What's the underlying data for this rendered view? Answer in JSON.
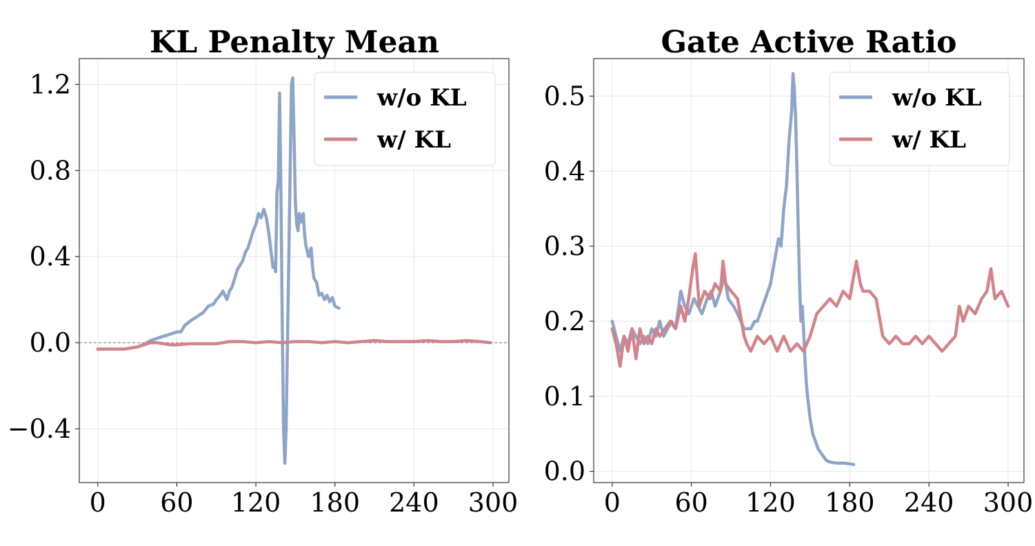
{
  "colors": {
    "wo_kl": "#8ea4c8",
    "w_kl": "#d2848a",
    "grid": "#e6e6e6",
    "axis": "#333333",
    "zero_line": "#777777"
  },
  "chart_data": [
    {
      "type": "line",
      "title": "KL Penalty Mean",
      "xlabel": "",
      "ylabel": "",
      "xlim": [
        -14,
        312
      ],
      "ylim": [
        -0.65,
        1.32
      ],
      "xticks": [
        0,
        60,
        120,
        180,
        240,
        300
      ],
      "xtick_labels": [
        "0",
        "60",
        "120",
        "180",
        "240",
        "300"
      ],
      "yticks": [
        -0.4,
        0.0,
        0.4,
        0.8,
        1.2
      ],
      "ytick_labels": [
        "−0.4",
        "0.0",
        "0.4",
        "0.8",
        "1.2"
      ],
      "grid": true,
      "zero_reference_line": true,
      "legend": {
        "position": "top-right",
        "entries": [
          "w/o KL",
          "w/ KL"
        ]
      },
      "series": [
        {
          "name": "w/o KL",
          "color_key": "wo_kl",
          "x": [
            0,
            10,
            20,
            30,
            36,
            40,
            45,
            50,
            55,
            60,
            63,
            66,
            70,
            75,
            80,
            84,
            88,
            90,
            93,
            95,
            98,
            100,
            102,
            104,
            106,
            108,
            110,
            112,
            114,
            116,
            118,
            120,
            122,
            124,
            126,
            128,
            130,
            132,
            133,
            134,
            135,
            136,
            137,
            138,
            139,
            140,
            141,
            142,
            143,
            144,
            145,
            146,
            147,
            148,
            149,
            150,
            151,
            152,
            153,
            154,
            155,
            156,
            157,
            158,
            160,
            162,
            163,
            164,
            166,
            168,
            170,
            172,
            174,
            176,
            178,
            180,
            183
          ],
          "y": [
            -0.03,
            -0.03,
            -0.03,
            -0.02,
            -0.005,
            0.01,
            0.02,
            0.03,
            0.04,
            0.05,
            0.05,
            0.08,
            0.1,
            0.12,
            0.14,
            0.17,
            0.18,
            0.2,
            0.22,
            0.24,
            0.2,
            0.24,
            0.26,
            0.3,
            0.34,
            0.36,
            0.38,
            0.42,
            0.44,
            0.48,
            0.52,
            0.55,
            0.6,
            0.58,
            0.62,
            0.58,
            0.5,
            0.4,
            0.35,
            0.37,
            0.33,
            0.7,
            0.75,
            1.16,
            0.7,
            0.1,
            -0.4,
            -0.56,
            -0.4,
            0.0,
            0.4,
            0.8,
            1.2,
            1.23,
            0.95,
            0.65,
            0.55,
            0.52,
            0.6,
            0.56,
            0.58,
            0.6,
            0.5,
            0.45,
            0.4,
            0.44,
            0.35,
            0.3,
            0.28,
            0.22,
            0.23,
            0.2,
            0.22,
            0.19,
            0.21,
            0.17,
            0.16
          ]
        },
        {
          "name": "w/ KL",
          "color_key": "w_kl",
          "x": [
            0,
            10,
            20,
            30,
            35,
            40,
            45,
            50,
            55,
            60,
            70,
            80,
            90,
            100,
            110,
            120,
            130,
            140,
            150,
            160,
            170,
            180,
            190,
            200,
            210,
            220,
            230,
            240,
            250,
            260,
            270,
            280,
            290,
            298
          ],
          "y": [
            -0.03,
            -0.03,
            -0.03,
            -0.02,
            -0.01,
            0.0,
            0.0,
            -0.005,
            -0.01,
            -0.01,
            -0.005,
            -0.005,
            -0.005,
            0.005,
            0.005,
            0.0,
            0.005,
            0.0,
            0.005,
            0.005,
            0.0,
            0.005,
            0.0,
            0.005,
            0.01,
            0.005,
            0.005,
            0.005,
            0.01,
            0.005,
            0.005,
            0.01,
            0.005,
            0.0
          ]
        }
      ]
    },
    {
      "type": "line",
      "title": "Gate Active Ratio",
      "xlabel": "",
      "ylabel": "",
      "xlim": [
        -14,
        312
      ],
      "ylim": [
        -0.015,
        0.55
      ],
      "xticks": [
        0,
        60,
        120,
        180,
        240,
        300
      ],
      "xtick_labels": [
        "0",
        "60",
        "120",
        "180",
        "240",
        "300"
      ],
      "yticks": [
        0.0,
        0.1,
        0.2,
        0.3,
        0.4,
        0.5
      ],
      "ytick_labels": [
        "0.0",
        "0.1",
        "0.2",
        "0.3",
        "0.4",
        "0.5"
      ],
      "grid": true,
      "zero_reference_line": false,
      "legend": {
        "position": "top-right",
        "entries": [
          "w/o KL",
          "w/ KL"
        ]
      },
      "series": [
        {
          "name": "w/o KL",
          "color_key": "wo_kl",
          "x": [
            0,
            3,
            6,
            9,
            12,
            15,
            18,
            21,
            24,
            27,
            30,
            33,
            36,
            39,
            42,
            45,
            48,
            52,
            55,
            58,
            62,
            65,
            68,
            72,
            75,
            78,
            82,
            85,
            88,
            92,
            95,
            100,
            105,
            108,
            110,
            112,
            114,
            116,
            118,
            120,
            122,
            124,
            126,
            128,
            130,
            132,
            134,
            136,
            137,
            138,
            139,
            140,
            141,
            142,
            143,
            144,
            145,
            146,
            147,
            148,
            150,
            152,
            154,
            156,
            158,
            160,
            162,
            164,
            166,
            170,
            175,
            180,
            183
          ],
          "y": [
            0.2,
            0.18,
            0.16,
            0.18,
            0.17,
            0.19,
            0.18,
            0.17,
            0.18,
            0.17,
            0.19,
            0.18,
            0.2,
            0.18,
            0.19,
            0.2,
            0.19,
            0.24,
            0.22,
            0.21,
            0.23,
            0.22,
            0.21,
            0.23,
            0.24,
            0.22,
            0.24,
            0.26,
            0.23,
            0.22,
            0.21,
            0.19,
            0.19,
            0.2,
            0.2,
            0.21,
            0.22,
            0.23,
            0.24,
            0.25,
            0.27,
            0.29,
            0.31,
            0.3,
            0.35,
            0.38,
            0.44,
            0.48,
            0.53,
            0.51,
            0.47,
            0.4,
            0.32,
            0.25,
            0.2,
            0.22,
            0.19,
            0.15,
            0.12,
            0.1,
            0.07,
            0.05,
            0.04,
            0.03,
            0.025,
            0.02,
            0.015,
            0.013,
            0.012,
            0.011,
            0.011,
            0.01,
            0.009
          ]
        },
        {
          "name": "w/ KL",
          "color_key": "w_kl",
          "x": [
            0,
            3,
            6,
            9,
            12,
            15,
            18,
            21,
            24,
            27,
            30,
            33,
            36,
            40,
            44,
            48,
            52,
            55,
            58,
            61,
            63,
            66,
            70,
            74,
            78,
            82,
            84,
            86,
            90,
            95,
            100,
            102,
            105,
            110,
            115,
            120,
            125,
            130,
            135,
            140,
            145,
            150,
            155,
            160,
            165,
            170,
            175,
            180,
            185,
            188,
            190,
            195,
            200,
            205,
            210,
            215,
            220,
            225,
            230,
            235,
            240,
            245,
            250,
            255,
            260,
            263,
            266,
            270,
            275,
            280,
            284,
            287,
            290,
            295,
            300
          ],
          "y": [
            0.19,
            0.17,
            0.14,
            0.18,
            0.16,
            0.19,
            0.15,
            0.19,
            0.17,
            0.18,
            0.17,
            0.19,
            0.18,
            0.19,
            0.2,
            0.19,
            0.22,
            0.2,
            0.23,
            0.27,
            0.29,
            0.22,
            0.24,
            0.23,
            0.25,
            0.24,
            0.28,
            0.25,
            0.24,
            0.23,
            0.18,
            0.17,
            0.16,
            0.18,
            0.17,
            0.18,
            0.16,
            0.18,
            0.16,
            0.17,
            0.16,
            0.18,
            0.21,
            0.22,
            0.23,
            0.22,
            0.24,
            0.23,
            0.28,
            0.25,
            0.24,
            0.24,
            0.23,
            0.18,
            0.17,
            0.18,
            0.17,
            0.17,
            0.18,
            0.17,
            0.18,
            0.17,
            0.16,
            0.17,
            0.18,
            0.22,
            0.2,
            0.22,
            0.21,
            0.23,
            0.24,
            0.27,
            0.23,
            0.24,
            0.22
          ]
        }
      ]
    }
  ]
}
